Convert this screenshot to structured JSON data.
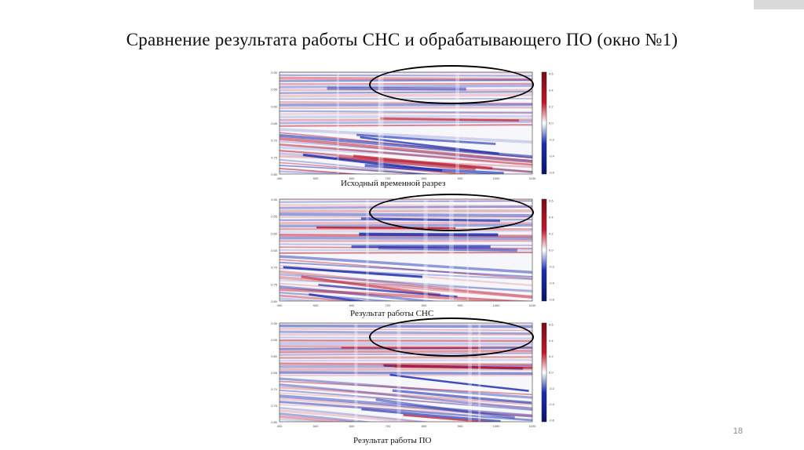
{
  "slide": {
    "title": "Сравнение результата работы СНС и обрабатывающего ПО (окно №1)",
    "number": "18"
  },
  "panels": [
    {
      "caption": "Исходный временной разрез",
      "colorbar_ticks": [
        "0.6",
        "0.4",
        "0.2",
        "0.0",
        "-0.2",
        "-0.4",
        "-0.6"
      ]
    },
    {
      "caption": "Результат работы СНС",
      "colorbar_ticks": [
        "0.6",
        "0.4",
        "0.2",
        "0.0",
        "-0.2",
        "-0.4",
        "-0.6"
      ]
    },
    {
      "caption": "Результат работы ПО",
      "colorbar_ticks": [
        "0.6",
        "0.4",
        "0.2",
        "0.0",
        "-0.2",
        "-0.4",
        "-0.6"
      ]
    }
  ],
  "axes": {
    "x_ticks": [
      "400",
      "500",
      "600",
      "700",
      "800",
      "900",
      "1000",
      "1100"
    ],
    "y_ticks": [
      "0.50",
      "0.55",
      "0.60",
      "0.65",
      "0.70",
      "0.75",
      "0.80"
    ]
  },
  "colors": {
    "positive": "#c0182b",
    "negative": "#1a2fb0",
    "neutral": "#ffffff"
  }
}
